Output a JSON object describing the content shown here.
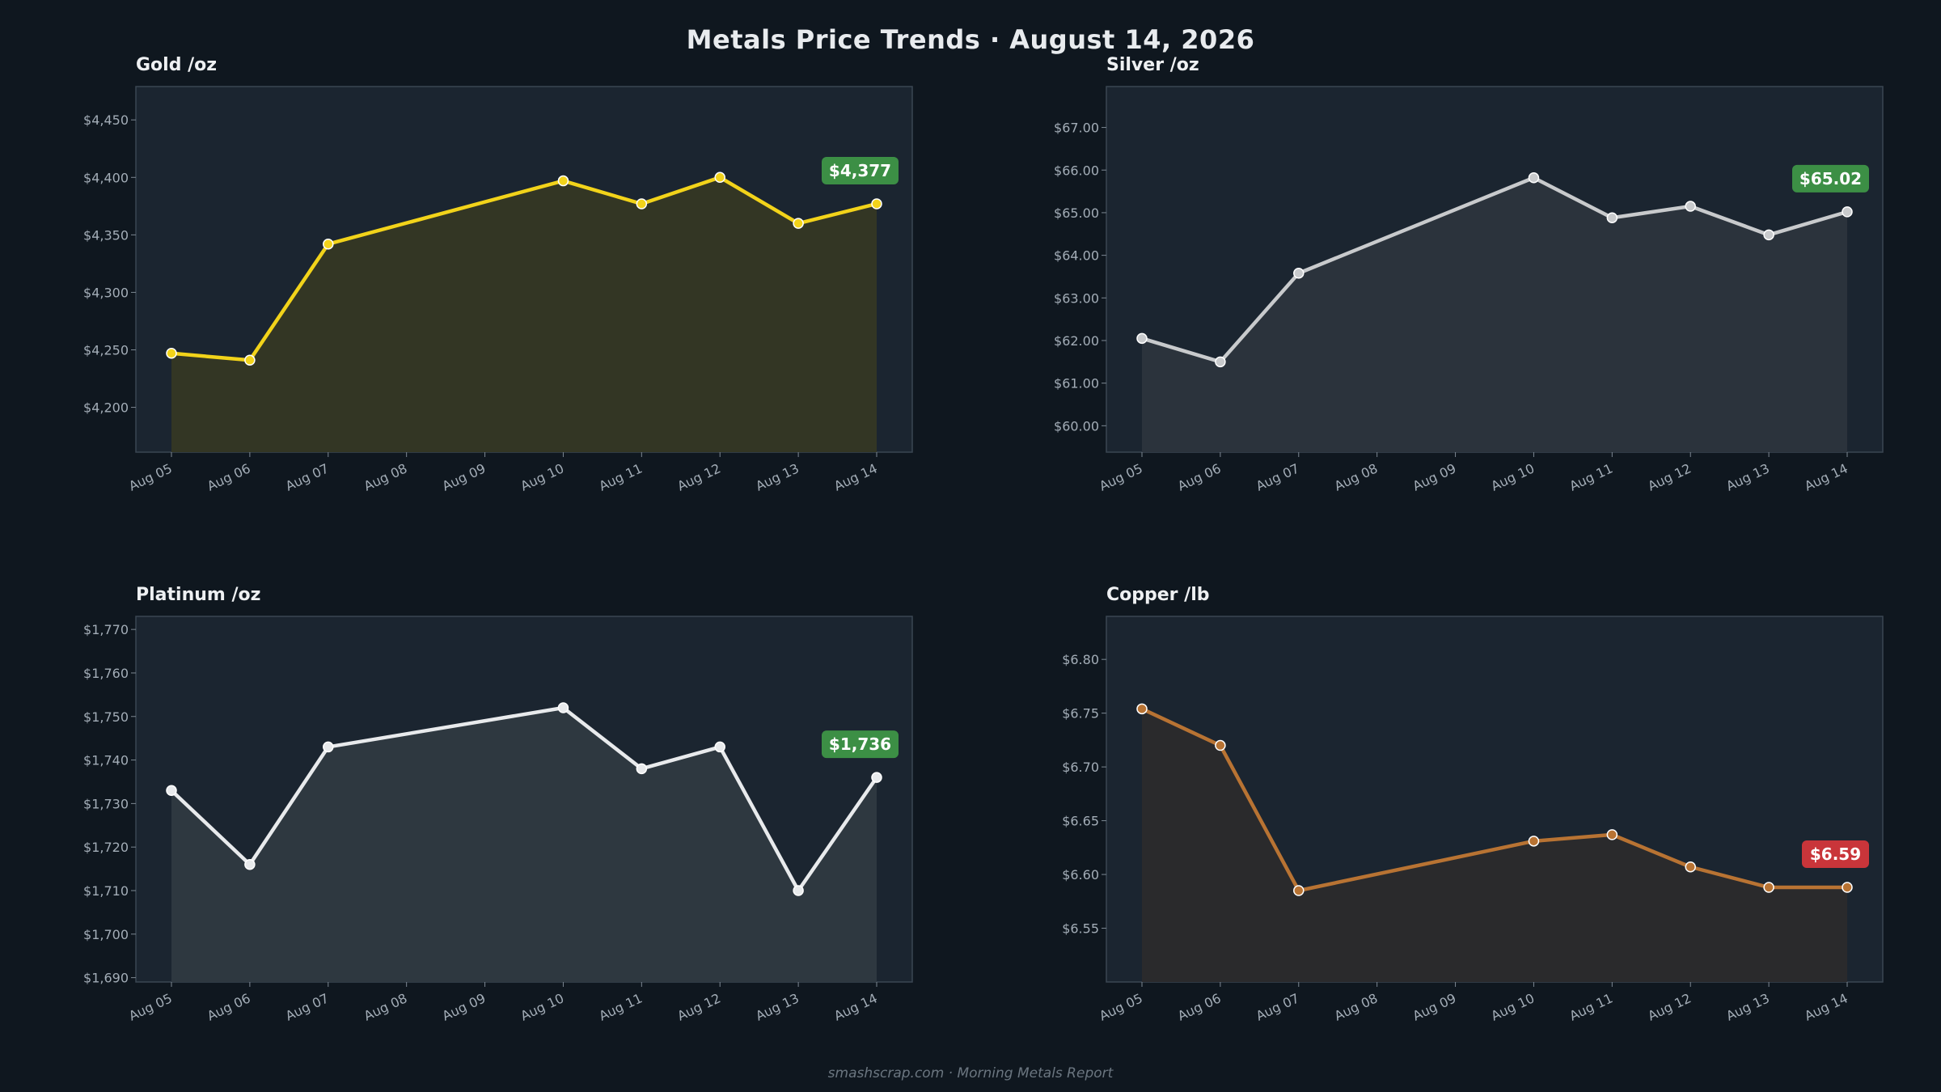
{
  "title": "Metals Price Trends  ·  August 14, 2026",
  "footer": "smashscrap.com  ·  Morning Metals Report",
  "chart_data": [
    {
      "type": "area",
      "title": "Gold  /oz",
      "color": "#f2d31a",
      "fill": "#333624",
      "badge": {
        "text": "$4,377",
        "color": "#3c8f45"
      },
      "categories": [
        "Aug 05",
        "Aug 06",
        "Aug 07",
        "Aug 08",
        "Aug 09",
        "Aug 10",
        "Aug 11",
        "Aug 12",
        "Aug 13",
        "Aug 14"
      ],
      "points": [
        {
          "x": "Aug 05",
          "y": 4247
        },
        {
          "x": "Aug 06",
          "y": 4241
        },
        {
          "x": "Aug 07",
          "y": 4342
        },
        {
          "x": "Aug 10",
          "y": 4397
        },
        {
          "x": "Aug 11",
          "y": 4377
        },
        {
          "x": "Aug 12",
          "y": 4400
        },
        {
          "x": "Aug 13",
          "y": 4360
        },
        {
          "x": "Aug 14",
          "y": 4377
        }
      ],
      "ylim": [
        4161,
        4479
      ],
      "yticks": [
        4200,
        4250,
        4300,
        4350,
        4400,
        4450
      ],
      "ytick_labels": [
        "$4,200",
        "$4,250",
        "$4,300",
        "$4,350",
        "$4,400",
        "$4,450"
      ],
      "grid": false
    },
    {
      "type": "area",
      "title": "Silver  /oz",
      "color": "#c8cacc",
      "fill": "#2b333c",
      "badge": {
        "text": "$65.02",
        "color": "#3c8f45"
      },
      "categories": [
        "Aug 05",
        "Aug 06",
        "Aug 07",
        "Aug 08",
        "Aug 09",
        "Aug 10",
        "Aug 11",
        "Aug 12",
        "Aug 13",
        "Aug 14"
      ],
      "points": [
        {
          "x": "Aug 05",
          "y": 62.05
        },
        {
          "x": "Aug 06",
          "y": 61.5
        },
        {
          "x": "Aug 07",
          "y": 63.58
        },
        {
          "x": "Aug 10",
          "y": 65.82
        },
        {
          "x": "Aug 11",
          "y": 64.88
        },
        {
          "x": "Aug 12",
          "y": 65.15
        },
        {
          "x": "Aug 13",
          "y": 64.48
        },
        {
          "x": "Aug 14",
          "y": 65.02
        }
      ],
      "ylim": [
        59.38,
        67.96
      ],
      "yticks": [
        60,
        61,
        62,
        63,
        64,
        65,
        66,
        67
      ],
      "ytick_labels": [
        "$60.00",
        "$61.00",
        "$62.00",
        "$63.00",
        "$64.00",
        "$65.00",
        "$66.00",
        "$67.00"
      ],
      "grid": false
    },
    {
      "type": "area",
      "title": "Platinum  /oz",
      "color": "#e8eaec",
      "fill": "#2e3840",
      "badge": {
        "text": "$1,736",
        "color": "#3c8f45"
      },
      "categories": [
        "Aug 05",
        "Aug 06",
        "Aug 07",
        "Aug 08",
        "Aug 09",
        "Aug 10",
        "Aug 11",
        "Aug 12",
        "Aug 13",
        "Aug 14"
      ],
      "points": [
        {
          "x": "Aug 05",
          "y": 1733
        },
        {
          "x": "Aug 06",
          "y": 1716
        },
        {
          "x": "Aug 07",
          "y": 1743
        },
        {
          "x": "Aug 10",
          "y": 1752
        },
        {
          "x": "Aug 11",
          "y": 1738
        },
        {
          "x": "Aug 12",
          "y": 1743
        },
        {
          "x": "Aug 13",
          "y": 1710
        },
        {
          "x": "Aug 14",
          "y": 1736
        }
      ],
      "ylim": [
        1689,
        1773
      ],
      "yticks": [
        1690,
        1700,
        1710,
        1720,
        1730,
        1740,
        1750,
        1760,
        1770
      ],
      "ytick_labels": [
        "$1,690",
        "$1,700",
        "$1,710",
        "$1,720",
        "$1,730",
        "$1,740",
        "$1,750",
        "$1,760",
        "$1,770"
      ],
      "grid": false
    },
    {
      "type": "area",
      "title": "Copper  /lb",
      "color": "#b87333",
      "fill": "#2a2a2c",
      "badge": {
        "text": "$6.59",
        "color": "#c9353a"
      },
      "categories": [
        "Aug 05",
        "Aug 06",
        "Aug 07",
        "Aug 08",
        "Aug 09",
        "Aug 10",
        "Aug 11",
        "Aug 12",
        "Aug 13",
        "Aug 14"
      ],
      "points": [
        {
          "x": "Aug 05",
          "y": 6.754
        },
        {
          "x": "Aug 06",
          "y": 6.72
        },
        {
          "x": "Aug 07",
          "y": 6.585
        },
        {
          "x": "Aug 10",
          "y": 6.631
        },
        {
          "x": "Aug 11",
          "y": 6.637
        },
        {
          "x": "Aug 12",
          "y": 6.607
        },
        {
          "x": "Aug 13",
          "y": 6.588
        },
        {
          "x": "Aug 14",
          "y": 6.588
        }
      ],
      "ylim": [
        6.5,
        6.84
      ],
      "yticks": [
        6.55,
        6.6,
        6.65,
        6.7,
        6.75,
        6.8
      ],
      "ytick_labels": [
        "$6.55",
        "$6.60",
        "$6.65",
        "$6.70",
        "$6.75",
        "$6.80"
      ],
      "grid": false
    }
  ]
}
